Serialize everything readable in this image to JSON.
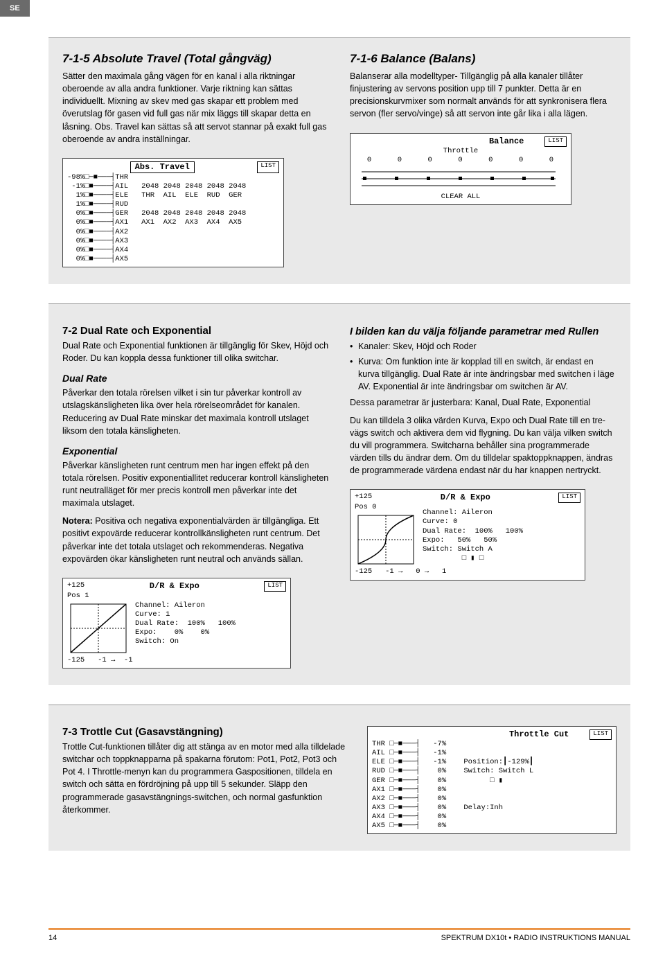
{
  "header": {
    "country": "SE"
  },
  "section1": {
    "left": {
      "title": "7-1-5 Absolute Travel  (Total gångväg)",
      "p1": "Sätter den maximala gång vägen för en kanal i alla riktningar oberoende av alla andra funktioner. Varje riktning kan sättas individuellt. Mixning av skev med gas skapar ett problem med överutslag för gasen vid full gas när mix läggs till skapar detta en låsning. Obs. Travel kan sättas så att servot stannar på exakt full gas oberoende av andra inställningar."
    },
    "right": {
      "title": "7-1-6 Balance  (Balans)",
      "p1": "Balanserar alla modelltyper- Tillgänglig på alla kanaler tillåter finjustering av servons position upp till 7 punkter. Detta är en precisionskurvmixer som normalt används för att synkronisera flera servon (fler servo/vinge) så att servon inte går lika i alla lägen."
    },
    "lcd_left": {
      "title": "Abs. Travel",
      "list": "LIST",
      "rows": [
        "-98%□─■───┤THR",
        " -1%□■────┤AIL   2048 2048 2048 2048 2048",
        "  1%□■────┤ELE   THR  AIL  ELE  RUD  GER",
        "  1%□■────┤RUD",
        "  0%□■────┤GER   2048 2048 2048 2048 2048",
        "  0%□■────┤AX1   AX1  AX2  AX3  AX4  AX5",
        "  0%□■────┤AX2",
        "  0%□■────┤AX3",
        "  0%□■────┤AX4",
        "  0%□■────┤AX5"
      ]
    },
    "lcd_right": {
      "title": "Balance",
      "list": "LIST",
      "sub": "Throttle",
      "values": "0     0     0     0     0     0     0",
      "clear": "CLEAR ALL"
    }
  },
  "section2": {
    "left": {
      "title": "7-2 Dual Rate och Exponential",
      "p1": "Dual Rate och Exponential funktionen är tillgänglig för Skev, Höjd och Roder. Du kan koppla dessa funktioner till olika switchar.",
      "h_dr": "Dual Rate",
      "p_dr": "Påverkar den totala rörelsen vilket i sin tur påverkar kontroll av utslagskänsligheten lika över hela rörelseområdet för kanalen. Reducering av Dual Rate minskar det maximala kontroll utslaget liksom den totala känsligheten.",
      "h_ex": "Exponential",
      "p_ex1": "Påverkar känsligheten runt centrum men har ingen effekt på den totala rörelsen. Positiv exponentiallitet reducerar kontroll känsligheten runt neutralläget för mer precis kontroll men påverkar inte det maximala utslaget.",
      "notera": "Notera:",
      "p_ex2": " Positiva och negativa exponentialvärden är tillgängliga. Ett positivt expovärde reducerar kontrollkänsligheten runt centrum. Det påverkar inte det totala utslaget och rekommenderas. Negativa expovärden ökar känsligheten runt neutral och används sällan."
    },
    "right": {
      "title": "I bilden kan du välja följande parametrar med Rullen",
      "li1": "Kanaler: Skev, Höjd och Roder",
      "li2": "Kurva: Om funktion inte är kopplad till en switch, är endast en kurva tillgänglig. Dual Rate är inte ändringsbar med switchen i läge AV. Exponential är inte ändringsbar om switchen är AV.",
      "p1": "Dessa parametrar är justerbara: Kanal, Dual Rate, Exponential",
      "p2": "Du kan tilldela 3 olika värden Kurva, Expo och Dual Rate till en tre-vägs switch och aktivera dem vid flygning. Du kan välja vilken switch du vill programmera. Switcharna behåller sina programmerade värden tills du ändrar dem. Om du tilldelar spaktoppknappen, ändras de programmerade värdena endast när du har knappen nertryckt."
    },
    "lcd_left": {
      "title": "D/R & Expo",
      "list": "LIST",
      "top": "+125",
      "pos": "Pos 1",
      "ch": "Channel: Aileron",
      "cv": "Curve: 1",
      "dr": "Dual Rate:  100%   100%",
      "ex": "Expo:    0%    0%",
      "sw": "Switch: On",
      "bot": "-125   -1 →  -1"
    },
    "lcd_right": {
      "title": "D/R & Expo",
      "list": "LIST",
      "top": "+125",
      "pos": "Pos 0",
      "ch": "Channel: Aileron",
      "cv": "Curve: 0",
      "dr": "Dual Rate:  100%   100%",
      "ex": "Expo:   50%   50%",
      "sw": "Switch: Switch A",
      "icons": "□ ▮ □",
      "bot": "-125   -1 →   0 →   1"
    }
  },
  "section3": {
    "title": "7-3 Trottle Cut  (Gasavstängning)",
    "p1": "Trottle Cut-funktionen tillåter dig att stänga av en motor med alla tilldelade switchar och toppknapparna på spakarna förutom: Pot1, Pot2, Pot3 och Pot 4. I Throttle-menyn kan du programmera Gaspositionen, tilldela en switch och sätta en fördröjning på upp till 5 sekunder. Släpp den programmerade gasavstängnings-switchen, och normal gasfunktion återkommer.",
    "lcd": {
      "title": "Throttle Cut",
      "list": "LIST",
      "rows": [
        "THR □─■───┤   -7%",
        "AIL □─■───┤   -1%",
        "ELE □─■───┤   -1%    Position:┃-129%┃",
        "RUD □─■───┤    0%    Switch: Switch L",
        "GER □─■───┤    0%          □ ▮",
        "AX1 □─■───┤    0%",
        "AX2 □─■───┤    0%",
        "AX3 □─■───┤    0%    Delay:Inh",
        "AX4 □─■───┤    0%",
        "AX5 □─■───┤    0%"
      ]
    }
  },
  "footer": {
    "page": "14",
    "right": "SPEKTRUM DX10t • RADIO INSTRUKTIONS MANUAL"
  }
}
